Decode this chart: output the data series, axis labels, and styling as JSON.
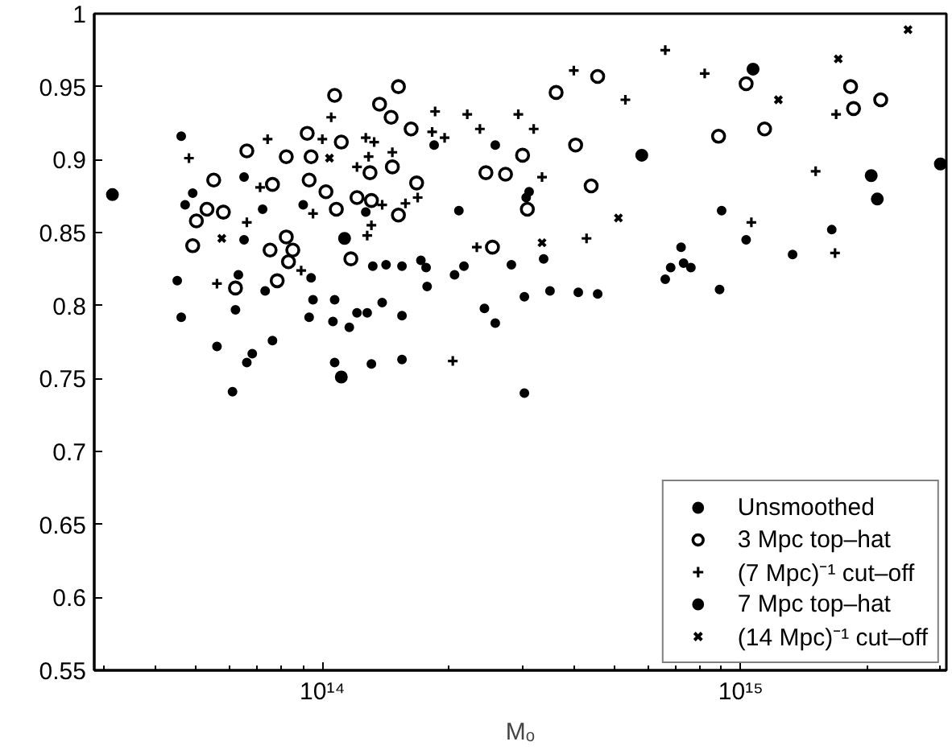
{
  "chart_data": {
    "type": "scatter",
    "xlabel": "Mₒ",
    "log": "x",
    "grid": false,
    "legend": "bottom right",
    "xlim": [
      28500000000000.0,
      3100000000000000.0
    ],
    "xticks": [
      {
        "value": 100000000000000.0,
        "label": "10¹⁴"
      },
      {
        "value": 1000000000000000.0,
        "label": "10¹⁵"
      }
    ],
    "ylim": [
      0.55,
      1
    ],
    "yticks": [
      0.55,
      0.6,
      0.65,
      0.7,
      0.75,
      0.8,
      0.85,
      0.9,
      0.95,
      1
    ],
    "series": [
      {
        "name": "Unsmoothed",
        "color": "#000000",
        "marker": "point",
        "x": [
          46000000000000.0,
          49000000000000.0,
          47000000000000.0,
          65000000000000.0,
          72000000000000.0,
          65000000000000.0,
          90000000000000.0,
          127000000000000.0,
          45000000000000.0,
          63000000000000.0,
          62000000000000.0,
          73000000000000.0,
          94000000000000.0,
          95000000000000.0,
          107000000000000.0,
          121000000000000.0,
          128000000000000.0,
          132000000000000.0,
          139000000000000.0,
          46000000000000.0,
          93000000000000.0,
          106000000000000.0,
          56000000000000.0,
          66000000000000.0,
          68000000000000.0,
          76000000000000.0,
          61000000000000.0,
          116000000000000.0,
          155000000000000.0,
          107000000000000.0,
          131000000000000.0,
          155000000000000.0,
          244000000000000.0,
          259000000000000.0,
          304000000000000.0,
          304000000000000.0,
          185000000000000.0,
          259000000000000.0,
          312000000000000.0,
          307000000000000.0,
          212000000000000.0,
          142000000000000.0,
          155000000000000.0,
          172000000000000.0,
          177000000000000.0,
          178000000000000.0,
          207000000000000.0,
          218000000000000.0,
          283000000000000.0,
          338000000000000.0,
          350000000000000.0,
          409000000000000.0,
          455000000000000.0,
          900000000000000.0,
          1030000000000000.0,
          1650000000000000.0,
          1330000000000000.0,
          720000000000000.0,
          680000000000000.0,
          730000000000000.0,
          760000000000000.0,
          660000000000000.0,
          890000000000000.0
        ],
        "values": [
          0.916,
          0.877,
          0.869,
          0.888,
          0.866,
          0.845,
          0.869,
          0.864,
          0.817,
          0.821,
          0.797,
          0.81,
          0.819,
          0.804,
          0.804,
          0.795,
          0.795,
          0.827,
          0.802,
          0.792,
          0.792,
          0.789,
          0.772,
          0.761,
          0.767,
          0.776,
          0.741,
          0.785,
          0.793,
          0.761,
          0.76,
          0.763,
          0.798,
          0.788,
          0.806,
          0.74,
          0.91,
          0.91,
          0.878,
          0.874,
          0.865,
          0.828,
          0.827,
          0.831,
          0.826,
          0.813,
          0.821,
          0.827,
          0.828,
          0.832,
          0.81,
          0.809,
          0.808,
          0.865,
          0.845,
          0.852,
          0.835,
          0.84,
          0.826,
          0.829,
          0.826,
          0.818,
          0.811
        ]
      },
      {
        "name": "3 Mpc top–hat",
        "color": "#000000",
        "marker": "circle",
        "x": [
          107000000000000.0,
          137000000000000.0,
          92000000000000.0,
          111000000000000.0,
          66000000000000.0,
          82000000000000.0,
          94000000000000.0,
          55000000000000.0,
          76000000000000.0,
          93000000000000.0,
          102000000000000.0,
          121000000000000.0,
          131000000000000.0,
          108000000000000.0,
          130000000000000.0,
          53000000000000.0,
          58000000000000.0,
          50000000000000.0,
          49000000000000.0,
          82000000000000.0,
          75000000000000.0,
          85000000000000.0,
          83000000000000.0,
          117000000000000.0,
          78000000000000.0,
          62000000000000.0,
          455000000000000.0,
          362000000000000.0,
          152000000000000.0,
          146000000000000.0,
          163000000000000.0,
          403000000000000.0,
          301000000000000.0,
          147000000000000.0,
          246000000000000.0,
          274000000000000.0,
          168000000000000.0,
          439000000000000.0,
          152000000000000.0,
          309000000000000.0,
          255000000000000.0,
          1030000000000000.0,
          1830000000000000.0,
          1860000000000000.0,
          2160000000000000.0,
          885000000000000.0,
          1140000000000000.0
        ],
        "values": [
          0.944,
          0.938,
          0.918,
          0.912,
          0.906,
          0.902,
          0.902,
          0.886,
          0.883,
          0.886,
          0.878,
          0.874,
          0.872,
          0.866,
          0.891,
          0.866,
          0.864,
          0.858,
          0.841,
          0.847,
          0.838,
          0.838,
          0.83,
          0.832,
          0.817,
          0.812,
          0.957,
          0.946,
          0.95,
          0.929,
          0.921,
          0.91,
          0.903,
          0.895,
          0.891,
          0.89,
          0.884,
          0.882,
          0.862,
          0.866,
          0.84,
          0.952,
          0.95,
          0.935,
          0.941,
          0.916,
          0.921
        ]
      },
      {
        "name": "(7 Mpc)⁻¹ cut–off",
        "color": "#000000",
        "marker": "cross",
        "x": [
          48000000000000.0,
          74000000000000.0,
          71000000000000.0,
          66000000000000.0,
          105000000000000.0,
          100000000000000.0,
          127000000000000.0,
          133000000000000.0,
          121000000000000.0,
          139000000000000.0,
          95000000000000.0,
          131000000000000.0,
          128000000000000.0,
          56000000000000.0,
          89000000000000.0,
          205000000000000.0,
          399000000000000.0,
          530000000000000.0,
          186000000000000.0,
          222000000000000.0,
          294000000000000.0,
          238000000000000.0,
          320000000000000.0,
          183000000000000.0,
          196000000000000.0,
          129000000000000.0,
          147000000000000.0,
          335000000000000.0,
          169000000000000.0,
          158000000000000.0,
          428000000000000.0,
          234000000000000.0,
          660000000000000.0,
          820000000000000.0,
          1690000000000000.0,
          1510000000000000.0,
          1060000000000000.0,
          1680000000000000.0
        ],
        "values": [
          0.901,
          0.914,
          0.881,
          0.857,
          0.929,
          0.914,
          0.915,
          0.912,
          0.895,
          0.869,
          0.863,
          0.855,
          0.848,
          0.815,
          0.824,
          0.762,
          0.961,
          0.941,
          0.933,
          0.931,
          0.931,
          0.921,
          0.921,
          0.919,
          0.915,
          0.902,
          0.905,
          0.888,
          0.874,
          0.87,
          0.846,
          0.84,
          0.975,
          0.959,
          0.931,
          0.892,
          0.857,
          0.836
        ]
      },
      {
        "name": "7 Mpc top–hat",
        "color": "#000000",
        "marker": "dot",
        "x": [
          31500000000000.0,
          111000000000000.0,
          1070000000000000.0,
          580000000000000.0,
          2050000000000000.0,
          2120000000000000.0,
          3000000000000000.0,
          113000000000000.0
        ],
        "values": [
          0.876,
          0.751,
          0.962,
          0.903,
          0.889,
          0.873,
          0.897,
          0.846
        ]
      },
      {
        "name": "(14 Mpc)⁻¹ cut–off",
        "color": "#000000",
        "marker": "x",
        "x": [
          2510000000000000.0,
          1710000000000000.0,
          1230000000000000.0,
          510000000000000.0,
          335000000000000.0,
          57500000000000.0,
          104000000000000.0
        ],
        "values": [
          0.989,
          0.969,
          0.941,
          0.86,
          0.843,
          0.846,
          0.901
        ]
      }
    ]
  }
}
